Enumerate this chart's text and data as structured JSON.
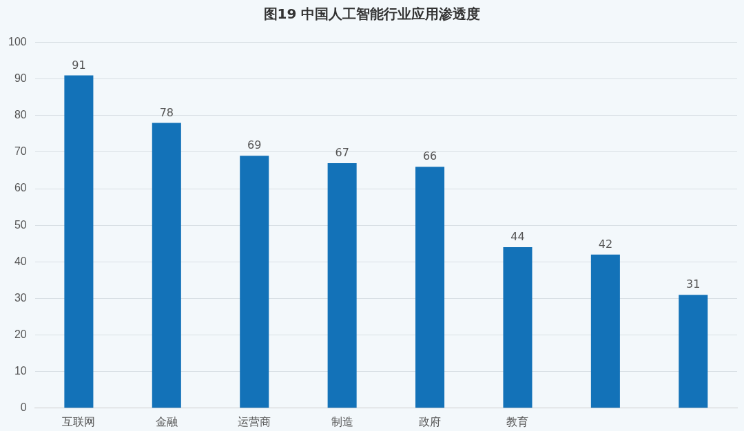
{
  "chart_data": {
    "type": "bar",
    "title": "图19 中国人工智能行业应用渗透度",
    "categories": [
      "互联网",
      "金融",
      "运营商",
      "制造",
      "政府",
      "教育",
      null,
      null
    ],
    "values": [
      91,
      78,
      69,
      67,
      66,
      44,
      42,
      31
    ],
    "color": "#1372b8",
    "ylim": [
      0,
      100
    ],
    "yticks": [
      0,
      10,
      20,
      30,
      40,
      50,
      60,
      70,
      80,
      90,
      100
    ],
    "grid": "y",
    "data_labels": true
  }
}
